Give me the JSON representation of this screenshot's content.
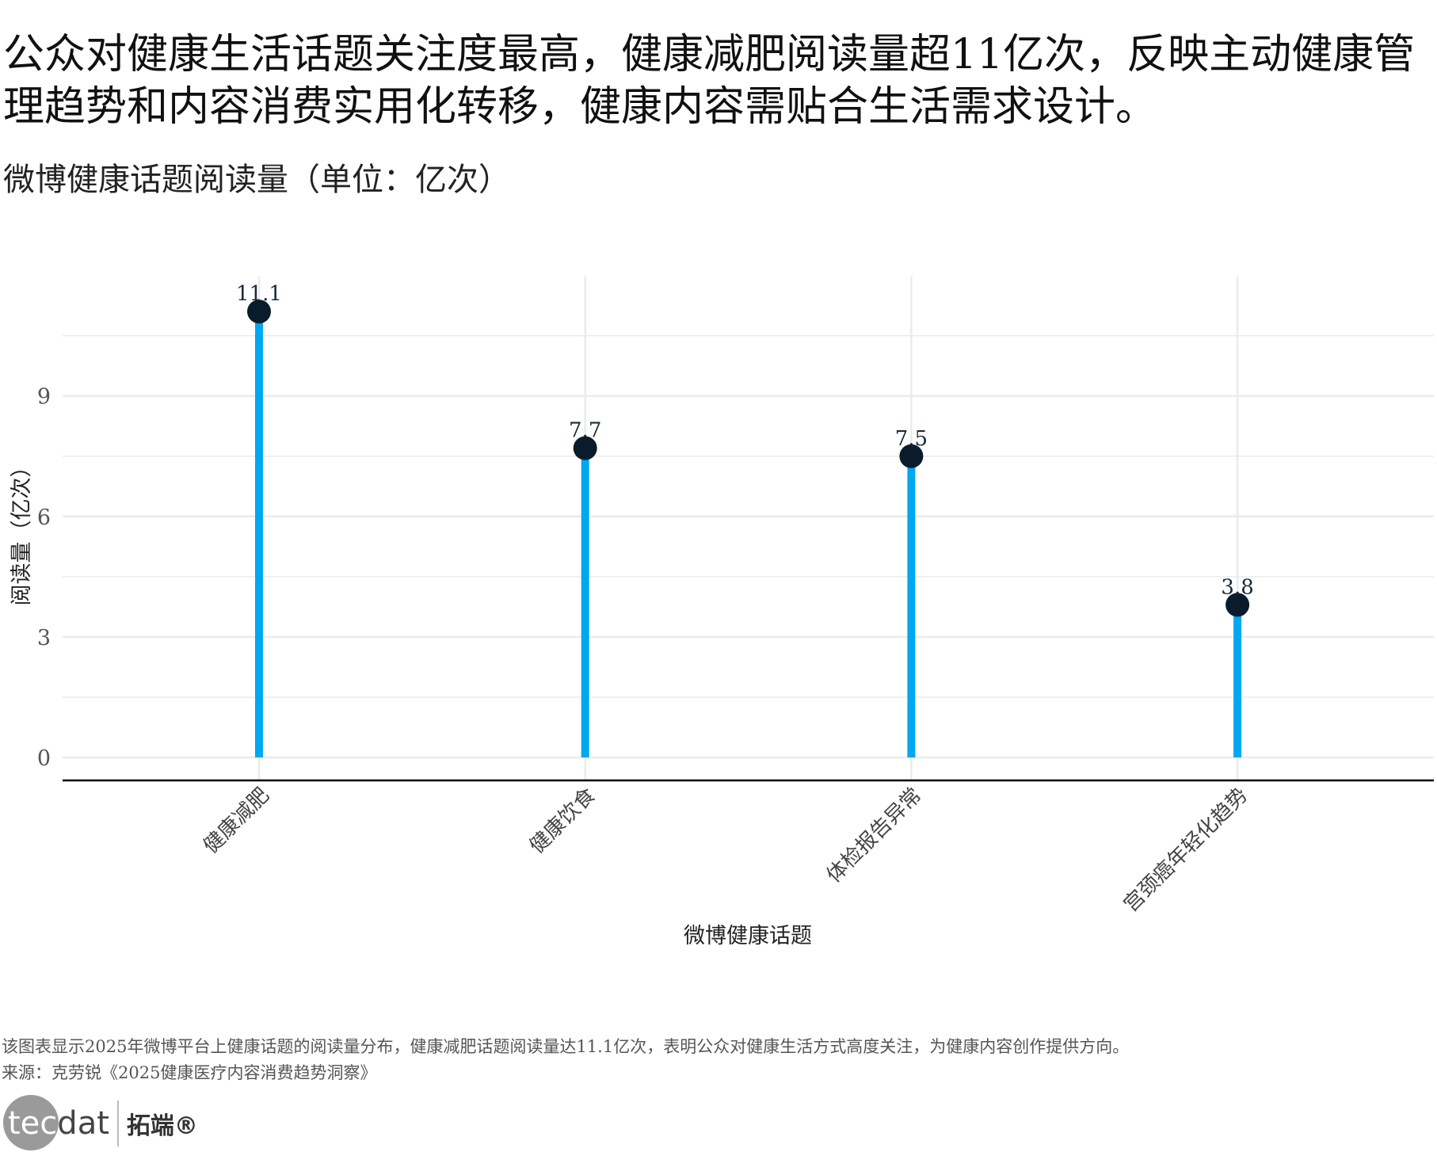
{
  "title": "公众对健康生活话题关注度最高，健康减肥阅读量超11亿次，反映主动健康管理趋势和内容消费实用化转移，健康内容需贴合生活需求设计。",
  "subtitle": "微博健康话题阅读量（单位：亿次）",
  "caption": "该图表显示2025年微博平台上健康话题的阅读量分布，健康减肥话题阅读量达11.1亿次，表明公众对健康生活方式高度关注，为健康内容创作提供方向。",
  "source": "来源：克劳锐《2025健康医疗内容消费趋势洞察》",
  "logo": {
    "text_a": "tec",
    "text_b": "dat",
    "cn": "拓端®"
  },
  "chart_data": {
    "type": "lollipop",
    "categories": [
      "健康减肥",
      "健康饮食",
      "体检报告异常",
      "宫颈癌年轻化趋势"
    ],
    "values": [
      11.1,
      7.7,
      7.5,
      3.8
    ],
    "value_labels": [
      "11.1",
      "7.7",
      "7.5",
      "3.8"
    ],
    "xlabel": "微博健康话题",
    "ylabel": "阅读量（亿次）",
    "yticks": [
      "0",
      "3",
      "6",
      "9"
    ],
    "ytick_values": [
      0,
      3,
      6,
      9
    ],
    "ylim": [
      0,
      12
    ],
    "grid": true,
    "colors": {
      "stem": "#00A8F0",
      "point": "#0A1C2B",
      "grid": "#EBEBEB",
      "axis": "#000000"
    }
  }
}
